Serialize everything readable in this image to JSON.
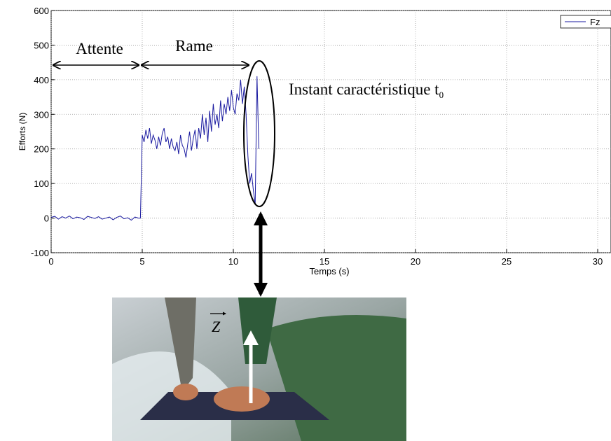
{
  "chart_data": {
    "type": "line",
    "x_label": "Temps (s)",
    "y_label": "Efforts (N)",
    "xlim": [
      0,
      30
    ],
    "xticks": [
      0,
      5,
      10,
      15,
      20,
      25,
      30
    ],
    "ylim": [
      -100,
      600
    ],
    "yticks": [
      -100,
      0,
      100,
      200,
      300,
      400,
      500,
      600
    ],
    "grid": true,
    "legend": "upper right",
    "x": [
      0,
      0.2,
      0.4,
      0.6,
      0.8,
      1.0,
      1.2,
      1.4,
      1.6,
      1.8,
      2.0,
      2.2,
      2.4,
      2.6,
      2.8,
      3.0,
      3.2,
      3.4,
      3.6,
      3.8,
      4.0,
      4.2,
      4.4,
      4.6,
      4.8,
      4.9,
      5.0,
      5.1,
      5.2,
      5.3,
      5.4,
      5.5,
      5.6,
      5.7,
      5.8,
      5.9,
      6.0,
      6.1,
      6.2,
      6.3,
      6.4,
      6.5,
      6.6,
      6.7,
      6.8,
      6.9,
      7.0,
      7.1,
      7.2,
      7.3,
      7.4,
      7.5,
      7.6,
      7.7,
      7.8,
      7.9,
      8.0,
      8.1,
      8.2,
      8.3,
      8.4,
      8.5,
      8.6,
      8.7,
      8.8,
      8.9,
      9.0,
      9.1,
      9.2,
      9.3,
      9.4,
      9.5,
      9.6,
      9.7,
      9.8,
      9.9,
      10.0,
      10.1,
      10.2,
      10.3,
      10.4,
      10.5,
      10.6,
      10.7,
      10.8,
      10.9,
      11.0,
      11.1,
      11.2,
      11.3,
      11.4
    ],
    "series": [
      {
        "name": "Fz",
        "color": "#1a1aa0",
        "values": [
          2,
          5,
          -3,
          4,
          0,
          6,
          -2,
          3,
          1,
          -4,
          5,
          2,
          -1,
          4,
          -3,
          0,
          3,
          -5,
          2,
          6,
          -2,
          1,
          -6,
          3,
          0,
          0,
          240,
          220,
          255,
          230,
          260,
          215,
          240,
          225,
          200,
          235,
          210,
          245,
          260,
          220,
          235,
          200,
          230,
          205,
          195,
          220,
          185,
          240,
          210,
          200,
          175,
          215,
          250,
          195,
          230,
          255,
          200,
          260,
          230,
          300,
          240,
          290,
          220,
          310,
          250,
          330,
          270,
          300,
          260,
          340,
          280,
          330,
          300,
          350,
          310,
          370,
          320,
          300,
          360,
          340,
          400,
          330,
          380,
          300,
          180,
          100,
          130,
          80,
          40,
          410,
          200
        ]
      }
    ],
    "annotations": {
      "wait": "Attente",
      "row": "Rame",
      "instant": "Instant caractéristique t",
      "instant_sub": "0",
      "vector": "Z"
    }
  }
}
